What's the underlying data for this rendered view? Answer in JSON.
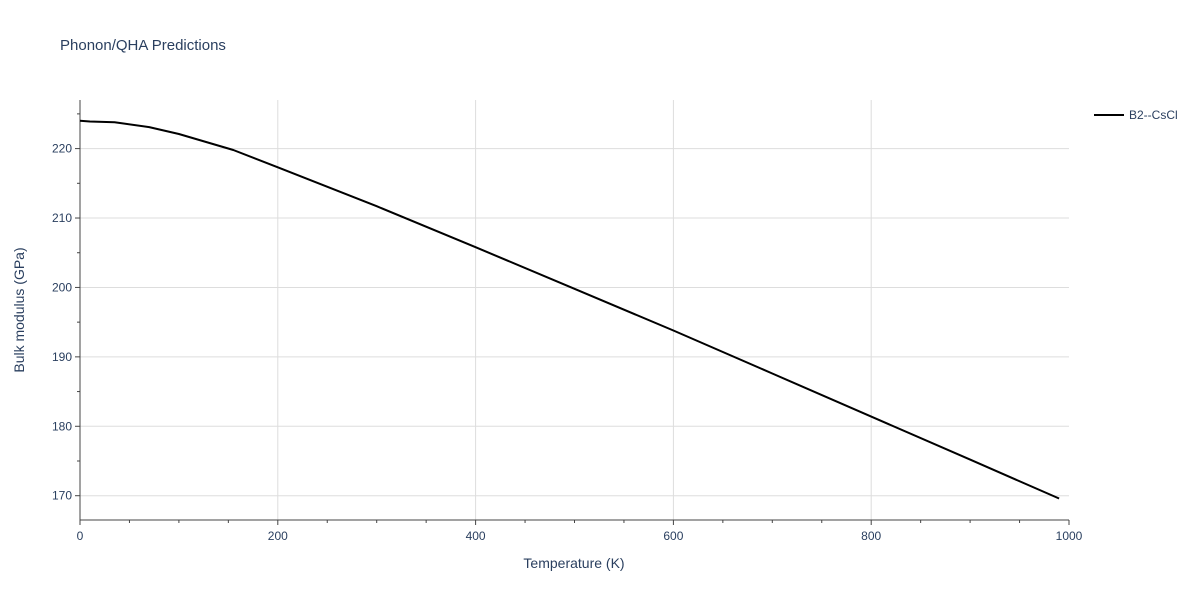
{
  "chart_data": {
    "type": "line",
    "title": "Phonon/QHA Predictions",
    "xlabel": "Temperature (K)",
    "ylabel": "Bulk modulus (GPa)",
    "xlim": [
      0,
      1000
    ],
    "ylim": [
      166.5,
      227
    ],
    "x_ticks": [
      0,
      200,
      400,
      600,
      800,
      1000
    ],
    "y_ticks": [
      170,
      180,
      190,
      200,
      210,
      220
    ],
    "grid": true,
    "legend_position": "top-right",
    "series": [
      {
        "name": "B2--CsCl",
        "color": "#000000",
        "x": [
          0,
          10,
          35,
          70,
          100,
          155,
          200,
          300,
          400,
          500,
          600,
          700,
          800,
          900,
          990
        ],
        "y": [
          224.0,
          223.9,
          223.8,
          223.1,
          222.1,
          219.8,
          217.3,
          211.7,
          205.8,
          199.8,
          193.8,
          187.6,
          181.4,
          175.2,
          169.6
        ]
      }
    ]
  }
}
